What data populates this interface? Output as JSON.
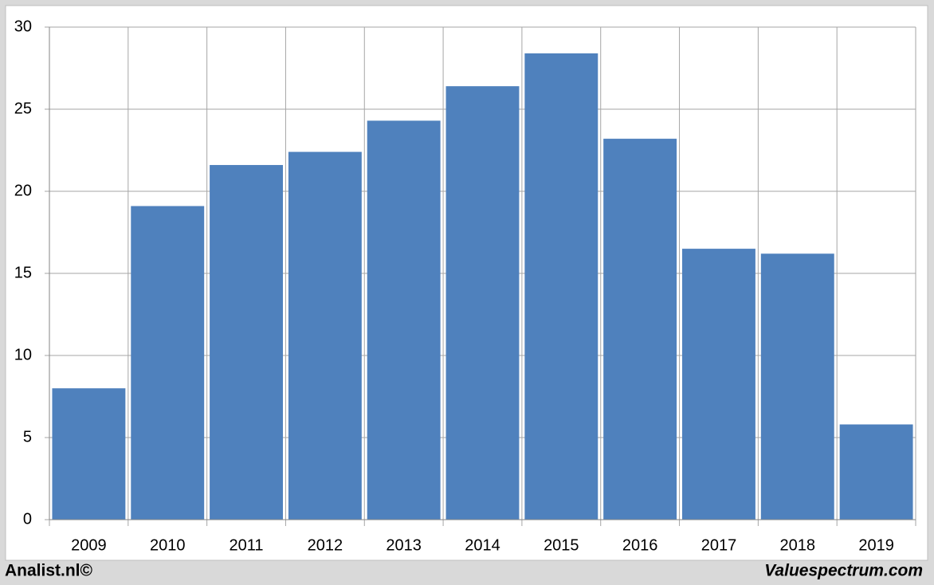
{
  "chart_data": {
    "type": "bar",
    "categories": [
      "2009",
      "2010",
      "2011",
      "2012",
      "2013",
      "2014",
      "2015",
      "2016",
      "2017",
      "2018",
      "2019"
    ],
    "values": [
      8.0,
      19.1,
      21.6,
      22.4,
      24.3,
      26.4,
      28.4,
      23.2,
      16.5,
      16.2,
      5.8
    ],
    "color": "#4f81bd",
    "ylim": [
      0,
      30
    ],
    "yticks": [
      0,
      5,
      10,
      15,
      20,
      25,
      30
    ],
    "grid": true,
    "footer_left": "Analist.nl©",
    "footer_right": "Valuespectrum.com"
  }
}
